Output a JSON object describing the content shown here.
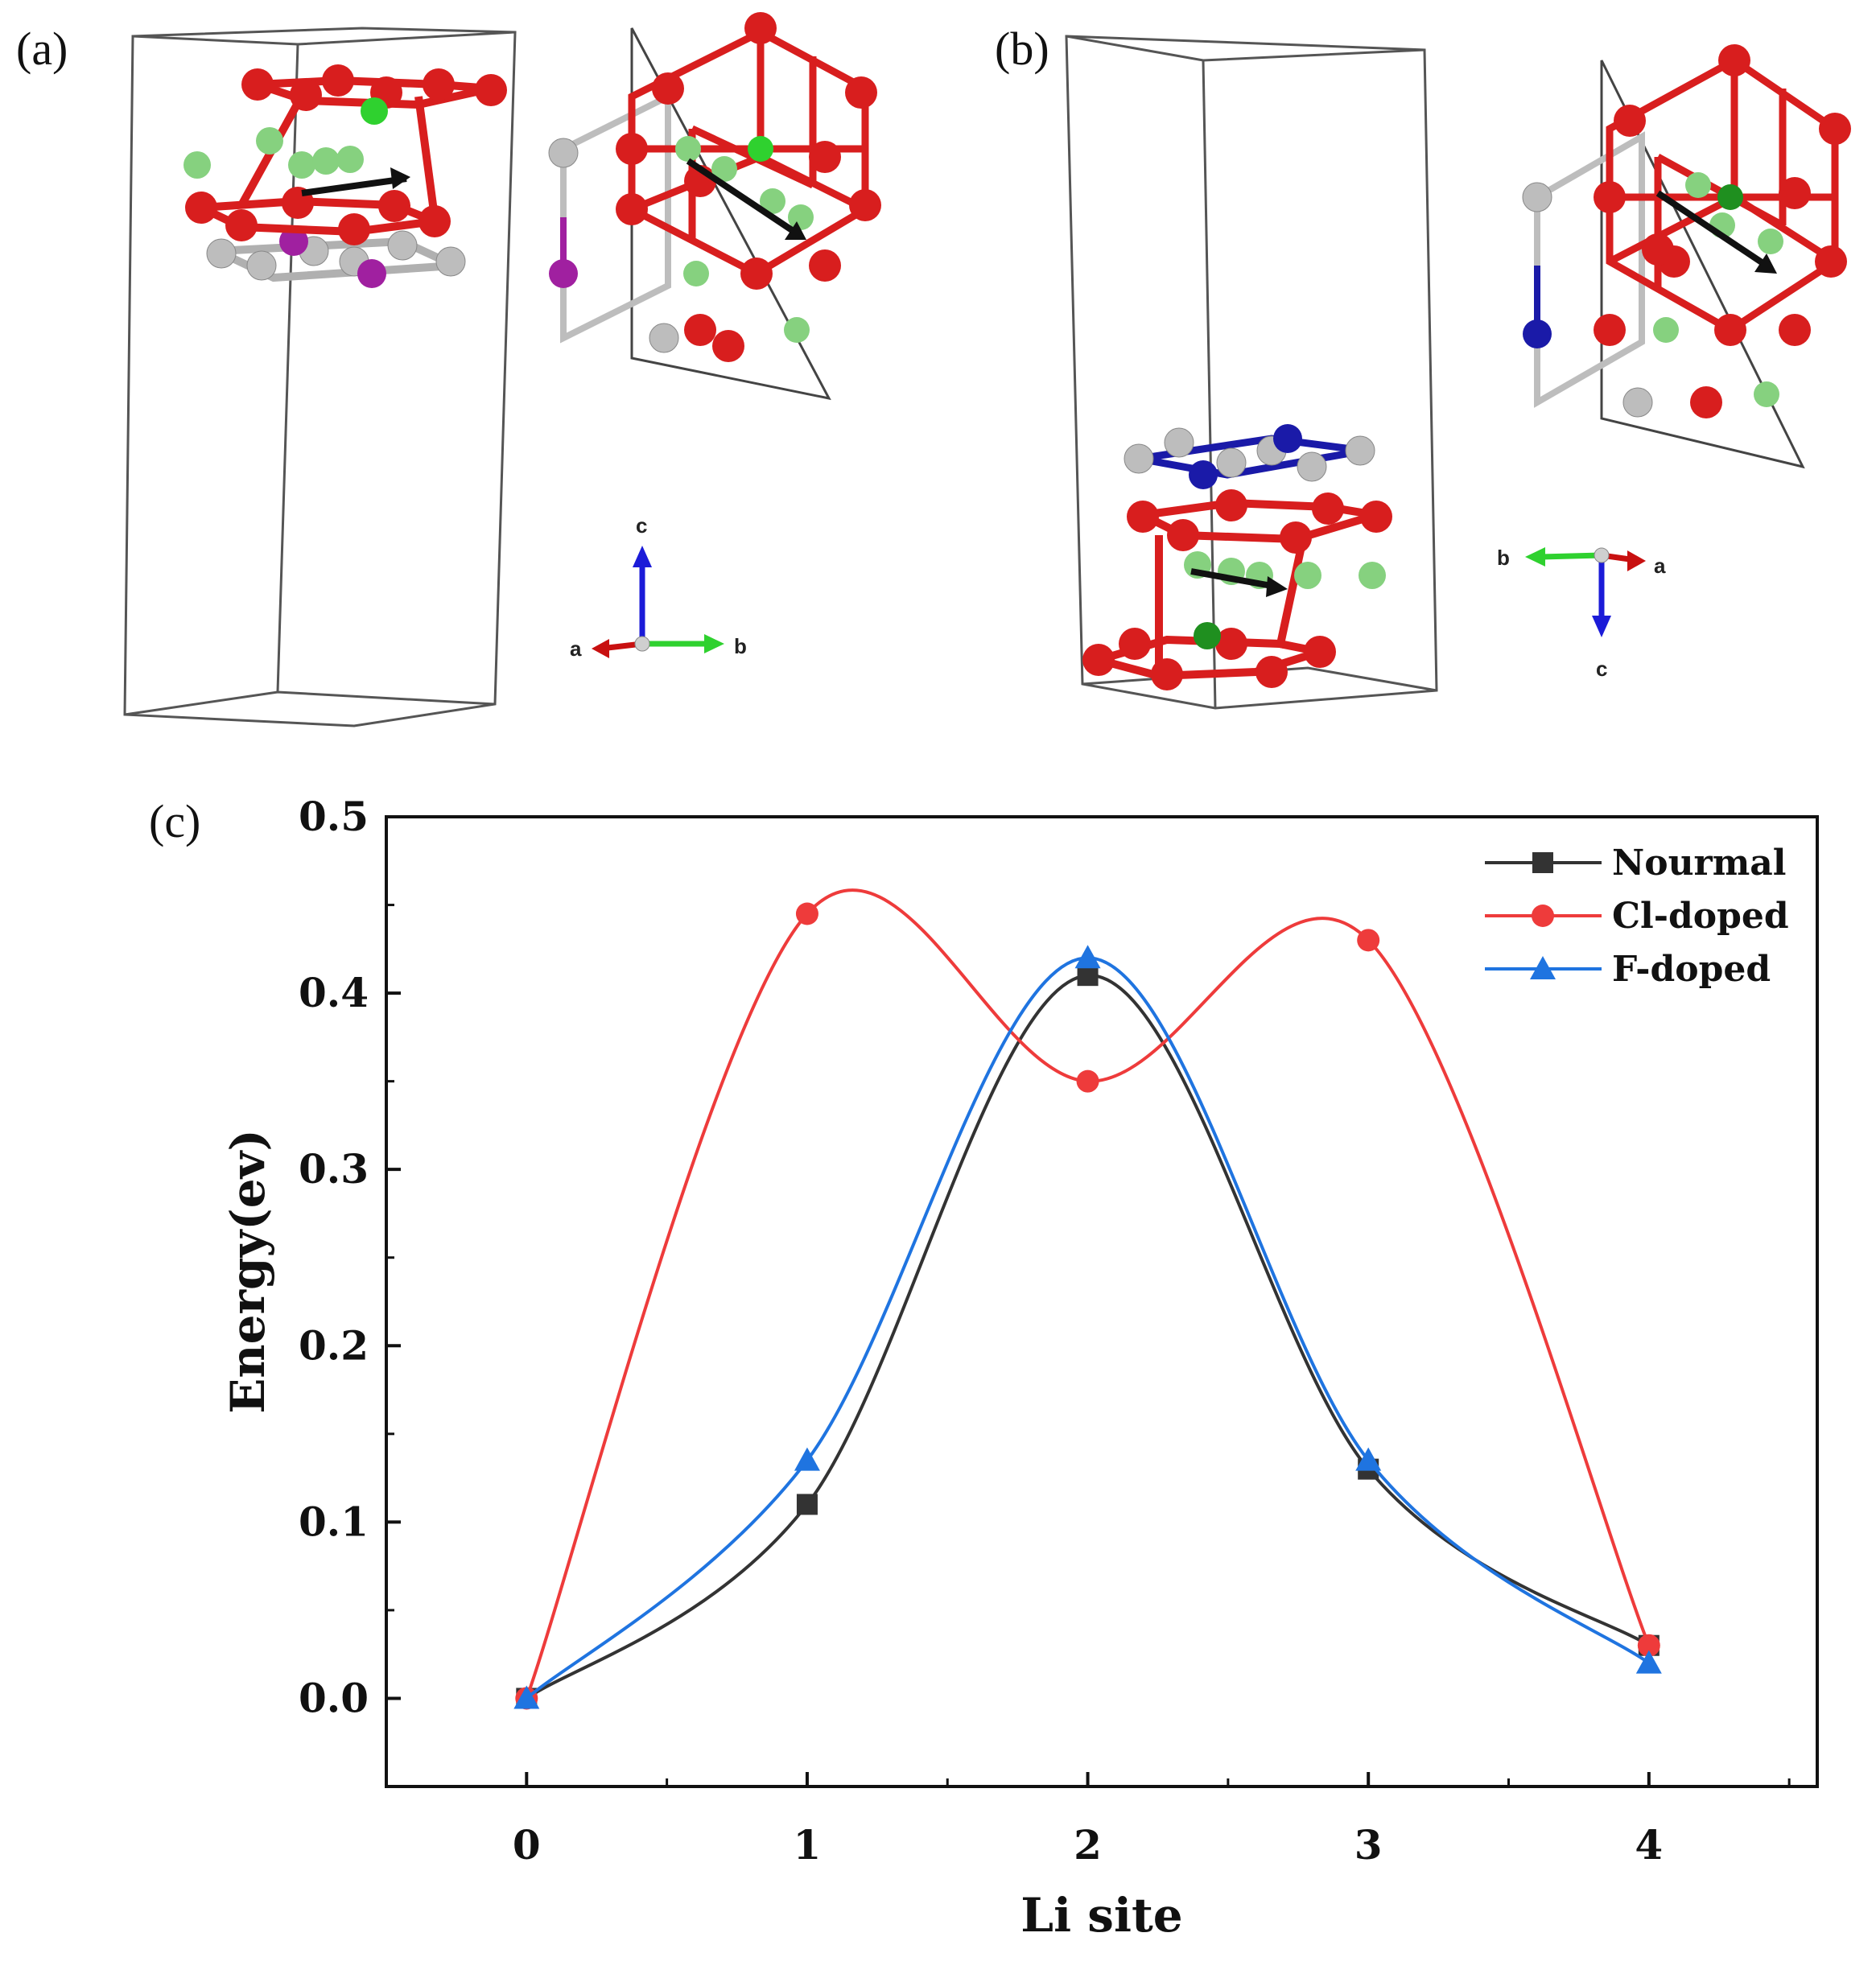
{
  "panels": {
    "a": "(a)",
    "b": "(b)",
    "c": "(c)"
  },
  "axes_a": {
    "c": "c",
    "a": "a",
    "b": "b"
  },
  "axes_b": {
    "b": "b",
    "a": "a",
    "c": "c"
  },
  "colors": {
    "oxygen": "#d81e1e",
    "li": "#86d17f",
    "metal": "#bdbdbd",
    "cl_dopant": "#2fd12f",
    "f_dopant": "#1f8f1f",
    "dopant_a": "#a020a0",
    "dopant_b": "#1a1aa8",
    "normal": "#333333",
    "cl_doped": "#ee3b3b",
    "f_doped": "#1f74e0"
  },
  "chart_data": {
    "type": "line",
    "title": "",
    "xlabel": "Li site",
    "ylabel": "Energy(ev)",
    "x": [
      0,
      1,
      2,
      3,
      4
    ],
    "xlim": [
      -0.5,
      4.6
    ],
    "ylim": [
      -0.05,
      0.5
    ],
    "xticks": [
      "0",
      "1",
      "2",
      "3",
      "4"
    ],
    "yticks": [
      "0.0",
      "0.1",
      "0.2",
      "0.3",
      "0.4",
      "0.5"
    ],
    "legend_position": "top-right",
    "series": [
      {
        "name": "Nourmal",
        "marker": "square",
        "color": "#333333",
        "values": [
          0.0,
          0.11,
          0.41,
          0.13,
          0.03
        ]
      },
      {
        "name": "Cl-doped",
        "marker": "circle",
        "color": "#ee3b3b",
        "values": [
          0.0,
          0.445,
          0.35,
          0.43,
          0.03
        ]
      },
      {
        "name": "F-doped",
        "marker": "triangle",
        "color": "#1f74e0",
        "values": [
          0.0,
          0.135,
          0.42,
          0.135,
          0.02
        ]
      }
    ]
  }
}
